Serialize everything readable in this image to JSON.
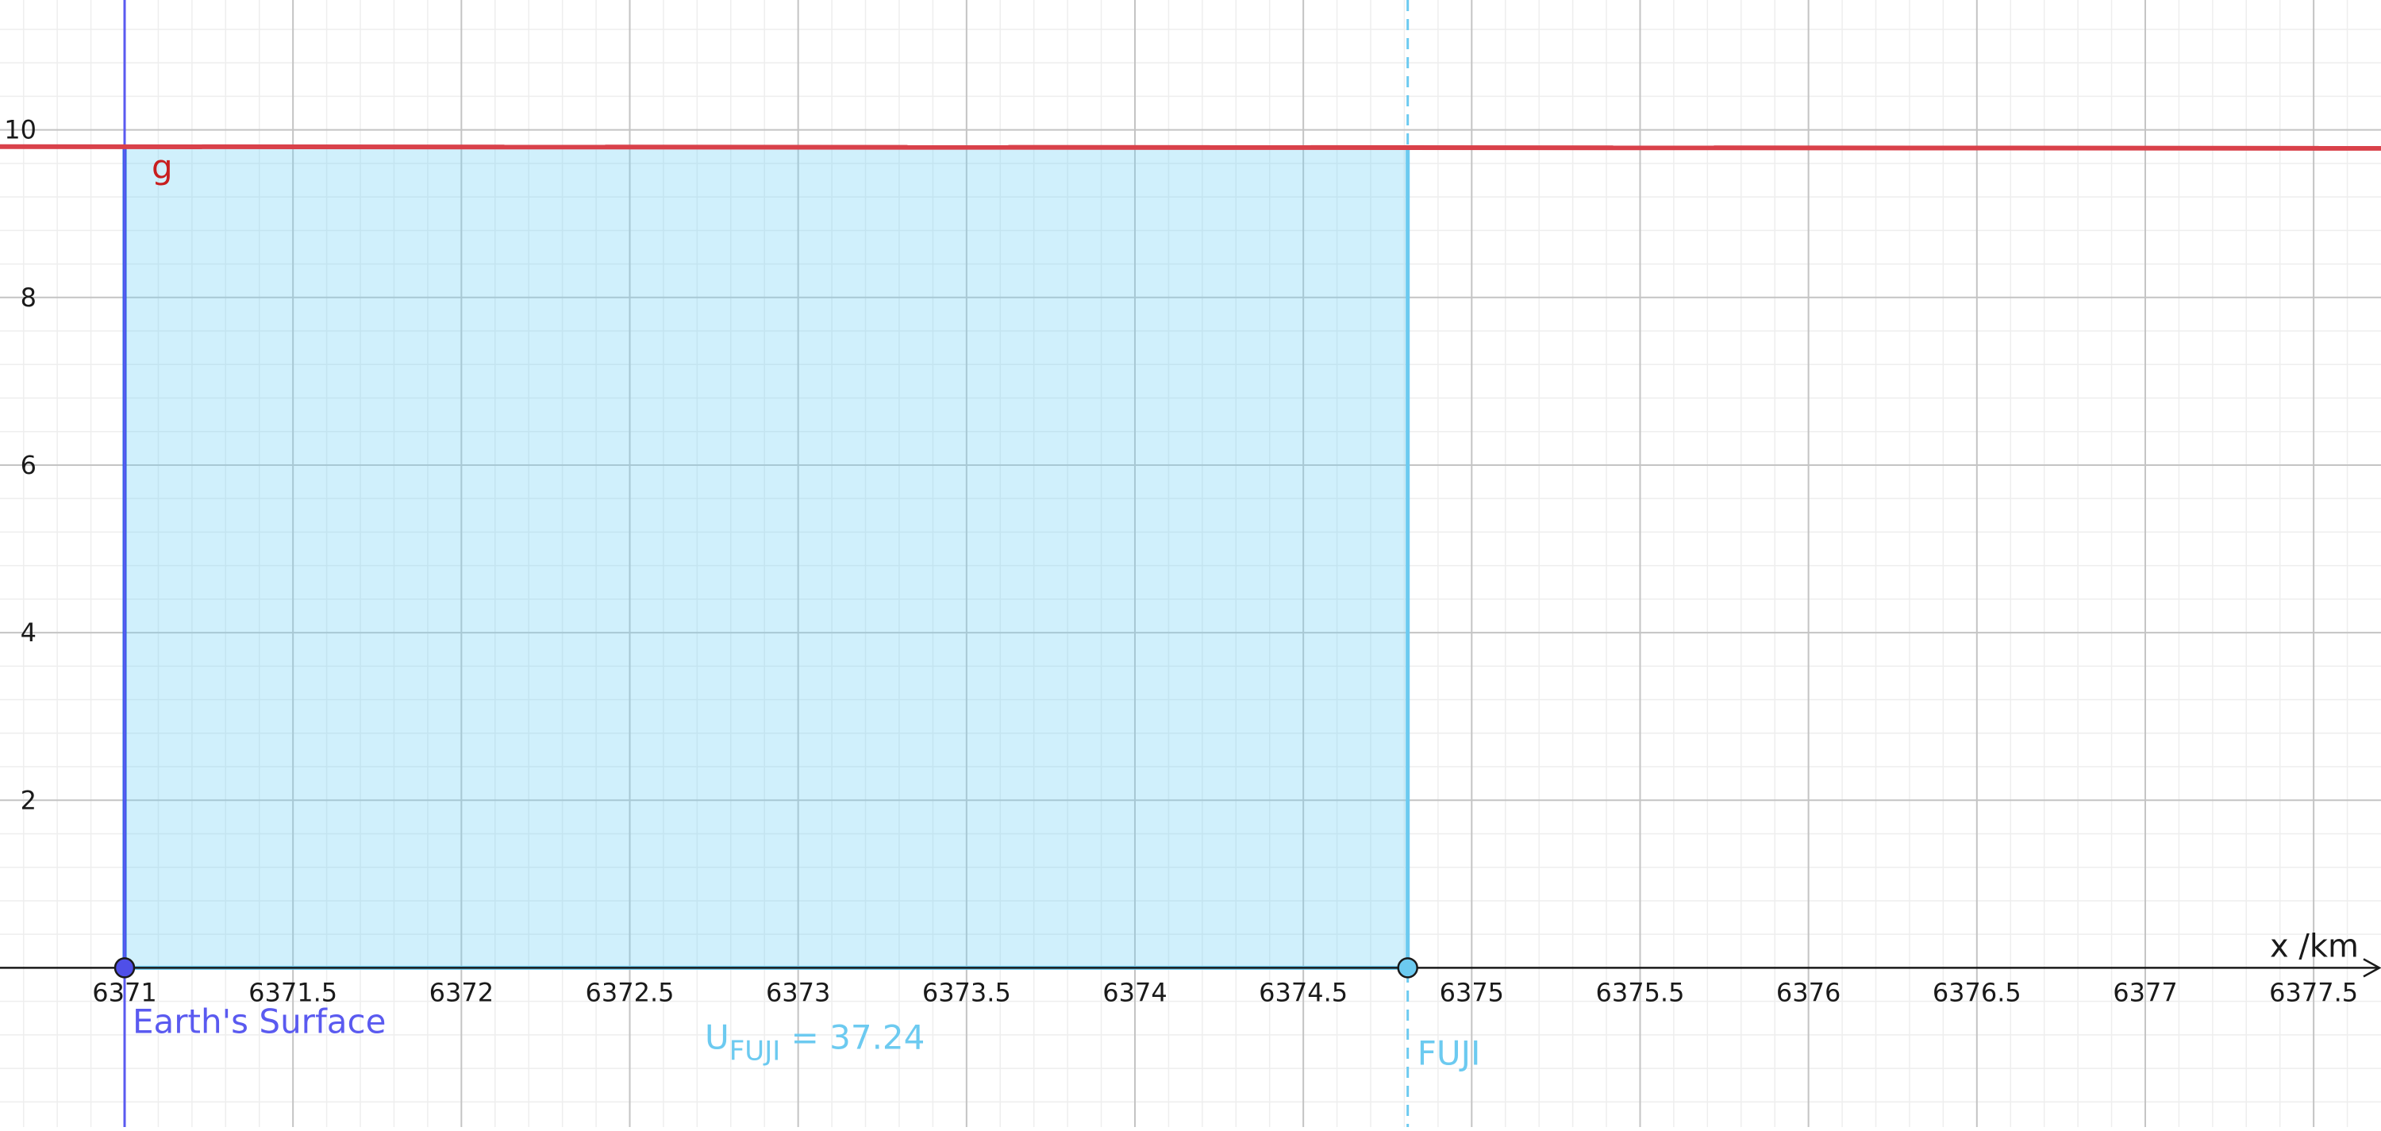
{
  "chart_data": {
    "type": "area",
    "xlabel": "x /km",
    "ylabel": "",
    "xlim": [
      6370.63,
      6377.7
    ],
    "ylim": [
      -1.9,
      11.55
    ],
    "grid": true,
    "x_ticks": [
      6371,
      6371.5,
      6372,
      6372.5,
      6373,
      6373.5,
      6374,
      6374.5,
      6375,
      6375.5,
      6376,
      6376.5,
      6377,
      6377.5
    ],
    "x_tick_labels": [
      "6371",
      "6371.5",
      "6372",
      "6372.5",
      "6373",
      "6373.5",
      "6374",
      "6374.5",
      "6375",
      "6375.5",
      "6376",
      "6376.5",
      "6377",
      "6377.5"
    ],
    "y_ticks": [
      2,
      4,
      6,
      8,
      10
    ],
    "y_tick_labels": [
      "2",
      "4",
      "6",
      "8",
      "10"
    ],
    "series": [
      {
        "name": "g",
        "type": "line",
        "color": "#d9414a",
        "x": [
          6370.63,
          6377.7
        ],
        "y": [
          9.8,
          9.78
        ]
      }
    ],
    "shaded_region": {
      "x_from": 6371,
      "x_to": 6374.81,
      "y_top": 9.8,
      "fill": "#6fd0f5",
      "label_main": "U",
      "label_sub": "FUJI",
      "label_rest": " = 37.24"
    },
    "vertical_lines": [
      {
        "x": 6371,
        "label": "Earth's Surface",
        "color": "#5a5af0",
        "style": "solid"
      },
      {
        "x": 6374.81,
        "label": "FUJI",
        "color": "#6ccaf0",
        "style": "dashed"
      }
    ],
    "points": [
      {
        "x": 6371,
        "y": 0,
        "color": "#4f4fe8"
      },
      {
        "x": 6374.81,
        "y": 0,
        "color": "#6ccaf0"
      }
    ]
  }
}
